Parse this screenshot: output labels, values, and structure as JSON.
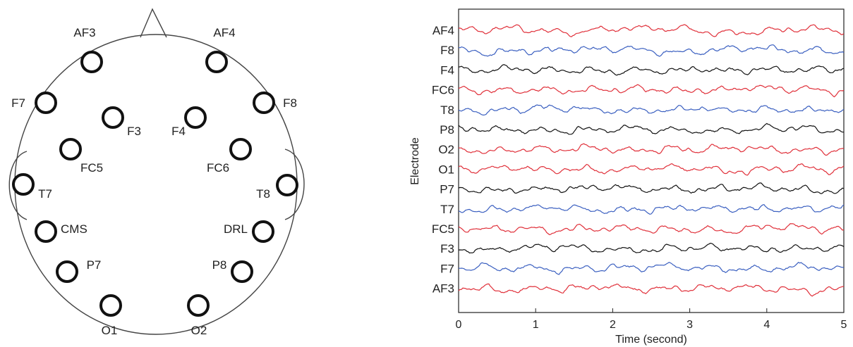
{
  "head_map": {
    "electrodes": [
      {
        "label": "AF3"
      },
      {
        "label": "AF4"
      },
      {
        "label": "F7"
      },
      {
        "label": "F8"
      },
      {
        "label": "F3"
      },
      {
        "label": "F4"
      },
      {
        "label": "FC5"
      },
      {
        "label": "FC6"
      },
      {
        "label": "T7"
      },
      {
        "label": "T8"
      },
      {
        "label": "CMS"
      },
      {
        "label": "DRL"
      },
      {
        "label": "P7"
      },
      {
        "label": "P8"
      },
      {
        "label": "O1"
      },
      {
        "label": "O2"
      }
    ]
  },
  "chart_data": {
    "type": "line",
    "xlabel": "Time (second)",
    "ylabel": "Electrode",
    "xlim": [
      0,
      5
    ],
    "x_ticks": [
      "0",
      "1",
      "2",
      "3",
      "4",
      "5"
    ],
    "grid": false,
    "series": [
      {
        "name": "AF4",
        "color": "#e0303a"
      },
      {
        "name": "F8",
        "color": "#3a5fc0"
      },
      {
        "name": "F4",
        "color": "#111111"
      },
      {
        "name": "FC6",
        "color": "#e0303a"
      },
      {
        "name": "T8",
        "color": "#3a5fc0"
      },
      {
        "name": "P8",
        "color": "#111111"
      },
      {
        "name": "O2",
        "color": "#e0303a"
      },
      {
        "name": "O1",
        "color": "#e0303a"
      },
      {
        "name": "P7",
        "color": "#111111"
      },
      {
        "name": "T7",
        "color": "#3a5fc0"
      },
      {
        "name": "FC5",
        "color": "#e0303a"
      },
      {
        "name": "F3",
        "color": "#111111"
      },
      {
        "name": "F7",
        "color": "#3a5fc0"
      },
      {
        "name": "AF3",
        "color": "#e0303a"
      }
    ]
  }
}
